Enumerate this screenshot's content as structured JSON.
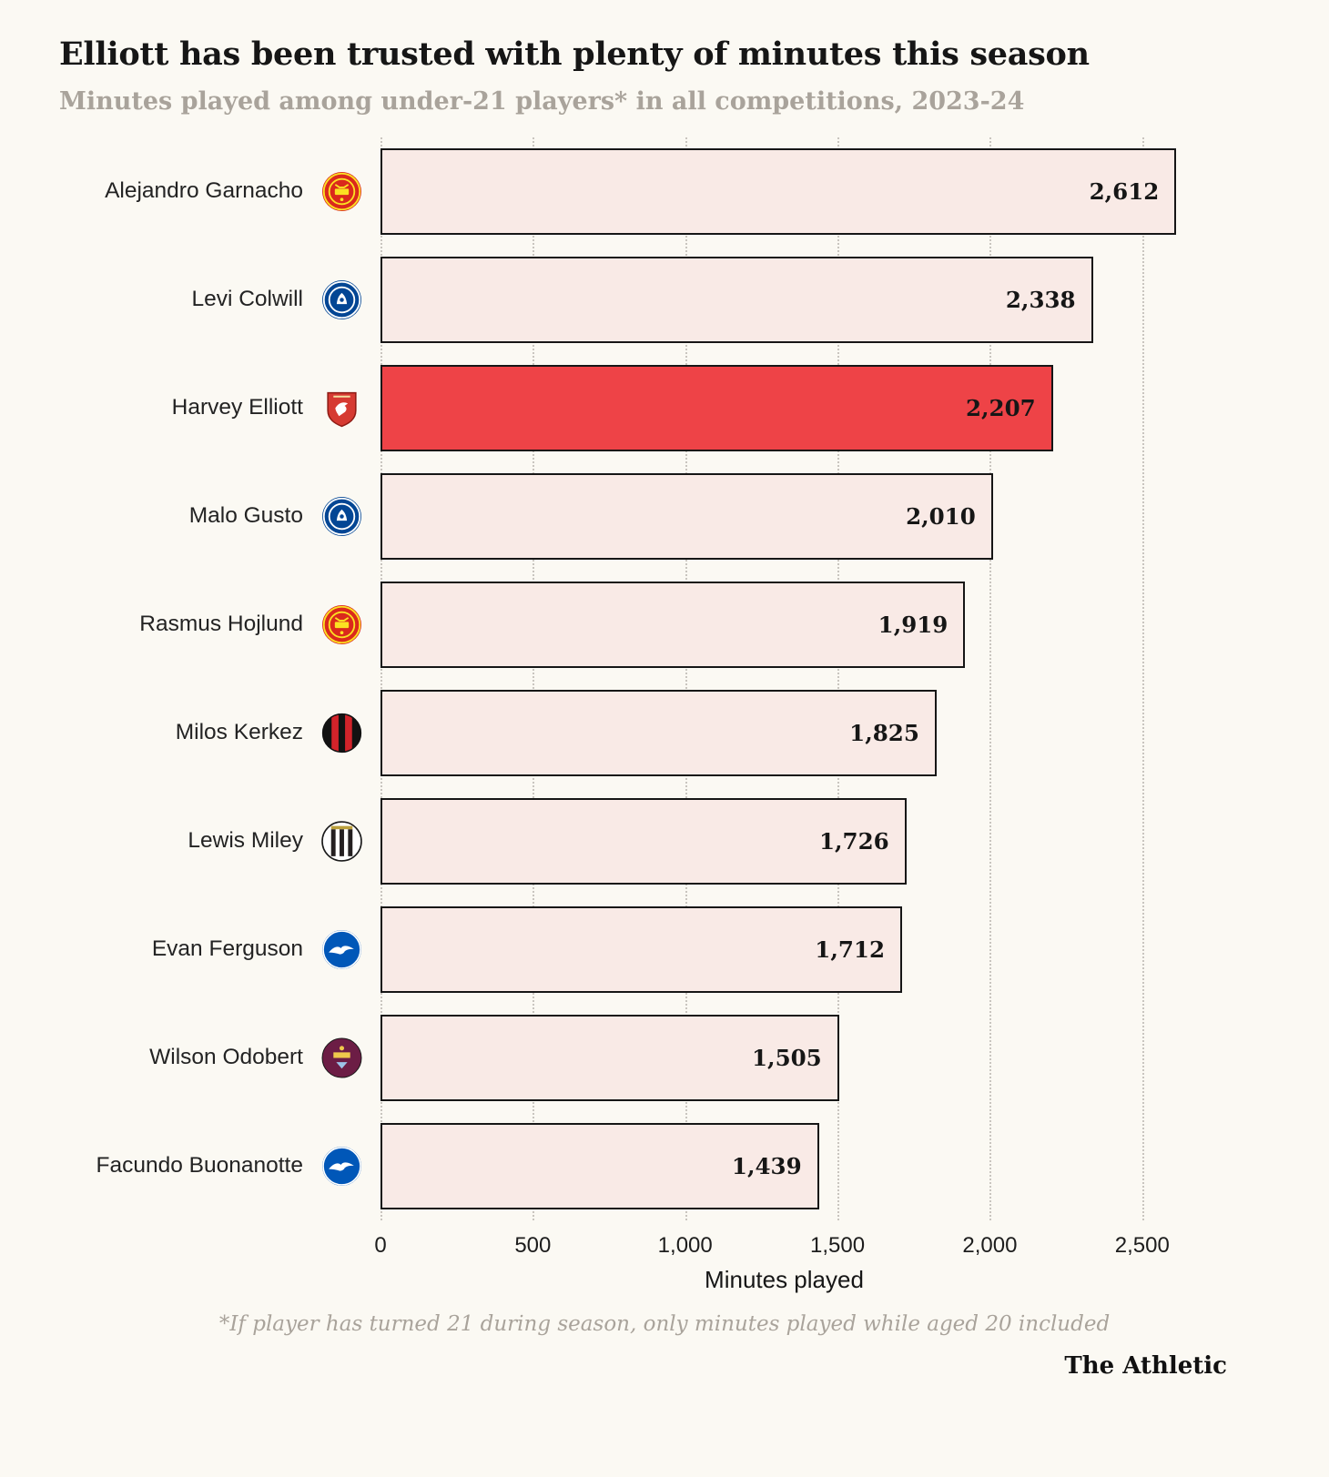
{
  "brand": "The Athletic",
  "chart_data": {
    "type": "bar",
    "orientation": "horizontal",
    "title": "Elliott has been trusted with plenty of minutes this season",
    "subtitle": "Minutes played among under-21 players* in all competitions, 2023-24",
    "xlabel": "Minutes played",
    "footnote": "*If player has turned 21 during season, only minutes played while aged 20 included",
    "x_max": 2650,
    "x_ticks": [
      0,
      500,
      1000,
      1500,
      2000,
      2500
    ],
    "x_tick_labels": [
      "0",
      "500",
      "1,000",
      "1,500",
      "2,000",
      "2,500"
    ],
    "grid": true,
    "legend": "none",
    "highlight_player": "Harvey Elliott",
    "colors": {
      "background": "#fbf9f3",
      "bar_fill": "#f9eae6",
      "bar_highlight": "#ee4347",
      "bar_border": "#161616",
      "grid_line": "#c9c5bf",
      "title_text": "#161616",
      "muted_text": "#a9a39b"
    },
    "categories": [
      "Alejandro Garnacho",
      "Levi Colwill",
      "Harvey Elliott",
      "Malo Gusto",
      "Rasmus Hojlund",
      "Milos Kerkez",
      "Lewis Miley",
      "Evan Ferguson",
      "Wilson Odobert",
      "Facundo Buonanotte"
    ],
    "values": [
      2612,
      2338,
      2207,
      2010,
      1919,
      1825,
      1726,
      1712,
      1505,
      1439
    ],
    "players": [
      {
        "name": "Alejandro Garnacho",
        "club": "Manchester United",
        "club_id": "manchester-united",
        "value": 2612,
        "label": "2,612",
        "highlight": false
      },
      {
        "name": "Levi Colwill",
        "club": "Chelsea",
        "club_id": "chelsea",
        "value": 2338,
        "label": "2,338",
        "highlight": false
      },
      {
        "name": "Harvey Elliott",
        "club": "Liverpool",
        "club_id": "liverpool",
        "value": 2207,
        "label": "2,207",
        "highlight": true
      },
      {
        "name": "Malo Gusto",
        "club": "Chelsea",
        "club_id": "chelsea",
        "value": 2010,
        "label": "2,010",
        "highlight": false
      },
      {
        "name": "Rasmus Hojlund",
        "club": "Manchester United",
        "club_id": "manchester-united",
        "value": 1919,
        "label": "1,919",
        "highlight": false
      },
      {
        "name": "Milos Kerkez",
        "club": "Bournemouth",
        "club_id": "bournemouth",
        "value": 1825,
        "label": "1,825",
        "highlight": false
      },
      {
        "name": "Lewis Miley",
        "club": "Newcastle United",
        "club_id": "newcastle-united",
        "value": 1726,
        "label": "1,726",
        "highlight": false
      },
      {
        "name": "Evan Ferguson",
        "club": "Brighton & Hove Albion",
        "club_id": "brighton",
        "value": 1712,
        "label": "1,712",
        "highlight": false
      },
      {
        "name": "Wilson Odobert",
        "club": "Burnley",
        "club_id": "burnley",
        "value": 1505,
        "label": "1,505",
        "highlight": false
      },
      {
        "name": "Facundo Buonanotte",
        "club": "Brighton & Hove Albion",
        "club_id": "brighton",
        "value": 1439,
        "label": "1,439",
        "highlight": false
      }
    ]
  }
}
